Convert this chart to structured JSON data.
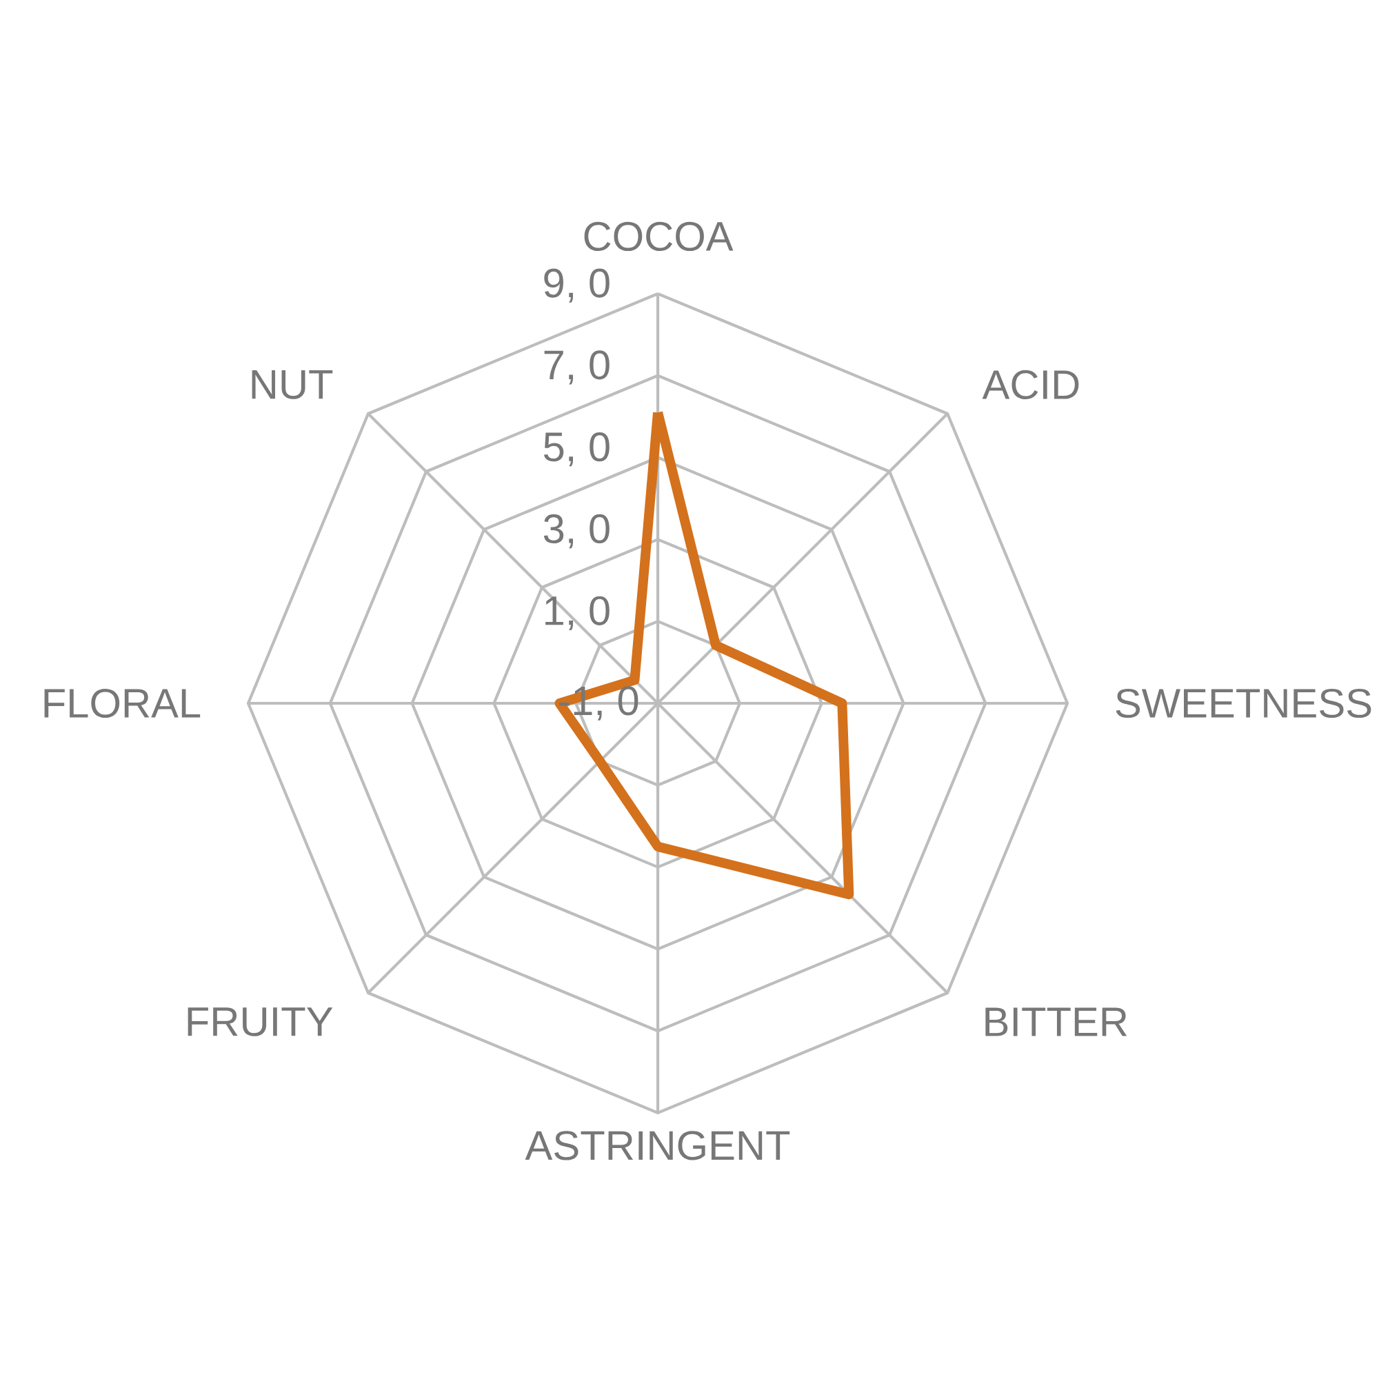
{
  "chart_data": {
    "type": "radar",
    "categories": [
      "COCOA",
      "ACID",
      "SWEETNESS",
      "BITTER",
      "ASTRINGENT",
      "FRUITY",
      "FLORAL",
      "NUT"
    ],
    "series": [
      {
        "color": "#d4711c",
        "values": [
          6.1,
          1.0,
          3.5,
          5.6,
          2.5,
          1.0,
          1.4,
          -0.2
        ]
      }
    ],
    "ylim": [
      -1,
      9
    ],
    "yticks": [
      {
        "value": -1,
        "label": "-1, 0"
      },
      {
        "value": 1,
        "label": "1, 0"
      },
      {
        "value": 3,
        "label": "3, 0"
      },
      {
        "value": 5,
        "label": "5, 0"
      },
      {
        "value": 7,
        "label": "7, 0"
      },
      {
        "value": 9,
        "label": "9, 0"
      }
    ],
    "grid": true,
    "marker": "none",
    "line_style": "solid"
  }
}
